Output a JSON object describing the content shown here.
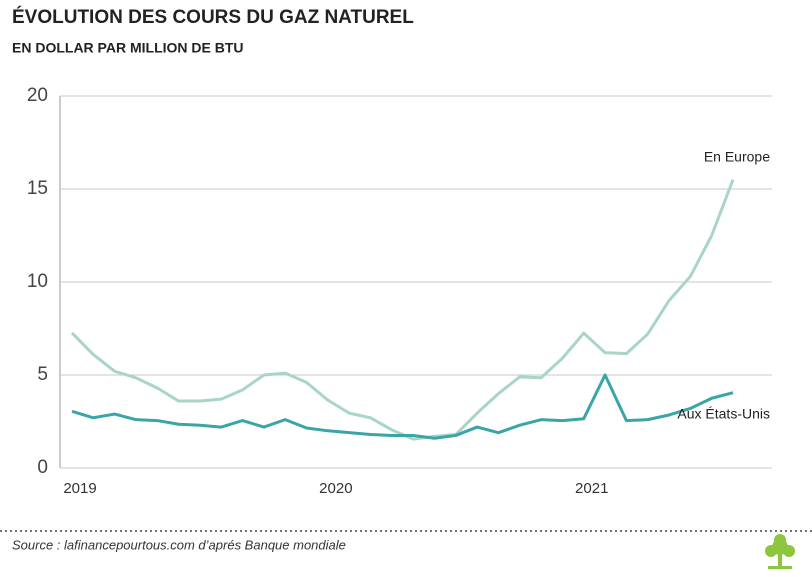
{
  "chart_data": {
    "type": "line",
    "title": "ÉVOLUTION DES COURS DU GAZ NATUREL",
    "subtitle": "EN DOLLAR PAR MILLION DE BTU",
    "source": "Source : lafinancepourtous.com d’aprés Banque mondiale",
    "categories": [
      "2019",
      null,
      null,
      null,
      null,
      null,
      null,
      null,
      null,
      null,
      null,
      null,
      "2020",
      null,
      null,
      null,
      null,
      null,
      null,
      null,
      null,
      null,
      null,
      null,
      "2021",
      null,
      null,
      null,
      null,
      null,
      null,
      null
    ],
    "series": [
      {
        "name": "En Europe",
        "color": "#a8d5c8",
        "values": [
          7.26,
          6.1,
          5.2,
          4.85,
          4.3,
          3.6,
          3.6,
          3.7,
          4.2,
          5.0,
          5.1,
          4.6,
          3.65,
          2.95,
          2.7,
          2.05,
          1.55,
          1.7,
          1.8,
          2.95,
          4.0,
          4.9,
          4.85,
          5.9,
          7.25,
          6.2,
          6.15,
          7.2,
          9.0,
          10.3,
          12.5,
          15.5
        ]
      },
      {
        "name": "Aux États-Unis",
        "color": "#3aa5a7",
        "values": [
          3.05,
          2.7,
          2.9,
          2.6,
          2.55,
          2.35,
          2.3,
          2.2,
          2.55,
          2.2,
          2.6,
          2.15,
          2.0,
          1.9,
          1.8,
          1.75,
          1.75,
          1.6,
          1.75,
          2.2,
          1.9,
          2.3,
          2.6,
          2.55,
          2.65,
          5.0,
          2.55,
          2.6,
          2.85,
          3.2,
          3.75,
          4.05
        ]
      }
    ],
    "ylim": [
      0,
      20
    ],
    "yticks": [
      0,
      5,
      10,
      15,
      20
    ],
    "grid": true
  }
}
